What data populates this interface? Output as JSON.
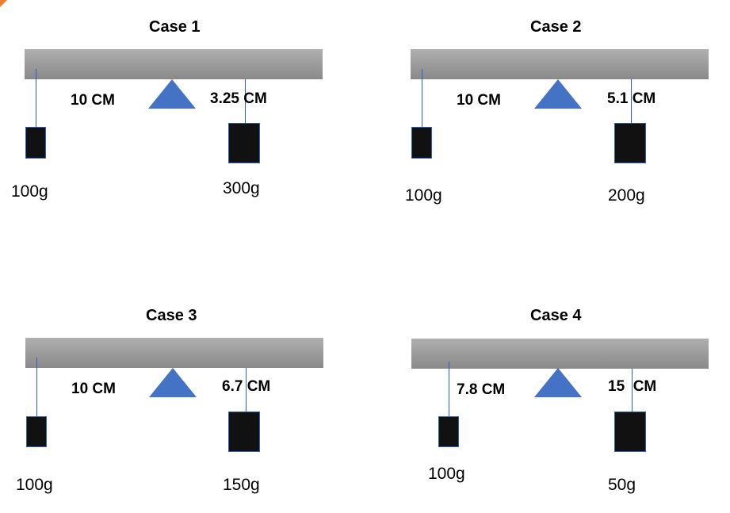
{
  "cases": [
    {
      "title": "Case 1",
      "left_distance": "10 CM",
      "right_distance": "3.25 CM",
      "left_mass": "100g",
      "right_mass": "300g"
    },
    {
      "title": "Case 2",
      "left_distance": "10 CM",
      "right_distance": "5.1 CM",
      "left_mass": "100g",
      "right_mass": "200g"
    },
    {
      "title": "Case 3",
      "left_distance": "10 CM",
      "right_distance": "6.7 CM",
      "left_mass": "100g",
      "right_mass": "150g"
    },
    {
      "title": "Case 4",
      "left_distance": "7.8 CM",
      "right_distance": "15  CM",
      "left_mass": "100g",
      "right_mass": "50g"
    }
  ],
  "colors": {
    "beam": "#9a9a9a",
    "fulcrum": "#4472c4",
    "string": "#2f5fbf",
    "weight": "#111111",
    "corner_mark": "#ed7d31"
  }
}
